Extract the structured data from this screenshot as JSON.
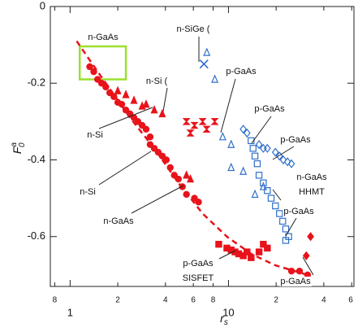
{
  "chart_data": {
    "type": "scatter",
    "x_label": {
      "base": "r",
      "sub": "s"
    },
    "y_label": {
      "base": "F",
      "sub": "0",
      "sup": "a"
    },
    "xscale": "log",
    "xlim": [
      0.75,
      62
    ],
    "ylim": [
      0,
      -0.73
    ],
    "xticks": [
      {
        "value": 0.8,
        "label": "8"
      },
      1,
      2,
      4,
      6,
      8,
      10,
      {
        "value": 20,
        "label": "2"
      },
      {
        "value": 40,
        "label": "4"
      },
      {
        "value": 60,
        "label": "6"
      }
    ],
    "major_xticks": [
      1,
      10
    ],
    "yticks": [
      0,
      -0.2,
      -0.4,
      -0.6
    ],
    "series": [
      {
        "color": "#e8131b",
        "marker": "circle",
        "filled": true,
        "x": [
          1.33,
          1.41,
          1.49,
          1.58,
          1.68,
          1.78,
          1.89,
          2.0,
          2.12,
          2.25,
          2.39,
          2.53,
          2.68,
          2.85,
          3.02,
          3.2,
          3.2,
          3.4,
          3.6,
          3.82,
          4.05,
          4.29,
          4.55,
          4.83,
          5.12,
          5.43,
          6.1,
          6.47,
          25,
          28.1,
          31.6
        ],
        "y": [
          -0.157,
          -0.17,
          -0.19,
          -0.2,
          -0.21,
          -0.225,
          -0.235,
          -0.25,
          -0.255,
          -0.27,
          -0.28,
          -0.29,
          -0.3,
          -0.31,
          -0.32,
          -0.34,
          -0.36,
          -0.37,
          -0.38,
          -0.39,
          -0.4,
          -0.42,
          -0.44,
          -0.45,
          -0.47,
          -0.49,
          -0.5,
          -0.51,
          -0.69,
          -0.69,
          -0.7
        ]
      },
      {
        "color": "#e8131b",
        "marker": "triangle",
        "filled": true,
        "x": [
          2.0,
          2.25,
          2.53,
          2.85,
          3.02,
          3.4,
          3.82,
          5.43,
          5.75
        ],
        "y": [
          -0.22,
          -0.23,
          -0.245,
          -0.26,
          -0.255,
          -0.27,
          -0.28,
          -0.44,
          -0.45
        ]
      },
      {
        "color": "#e8131b",
        "marker": "hourglass",
        "filled": true,
        "x": [
          5.43,
          6.1,
          6.87,
          7.28,
          8.19,
          5.75
        ],
        "y": [
          -0.3,
          -0.31,
          -0.3,
          -0.32,
          -0.3,
          -0.33
        ]
      },
      {
        "color": "#e8131b",
        "marker": "square",
        "filled": true,
        "x": [
          8.68,
          9.77,
          10.4,
          11.0,
          11.6,
          12.4,
          13.1,
          13.9,
          15.6,
          16.6,
          17.6
        ],
        "y": [
          -0.62,
          -0.63,
          -0.635,
          -0.64,
          -0.645,
          -0.65,
          -0.64,
          -0.655,
          -0.64,
          -0.62,
          -0.63
        ]
      },
      {
        "color": "#e8131b",
        "marker": "diamond",
        "filled": true,
        "x": [
          33,
          31
        ],
        "y": [
          -0.6,
          -0.65
        ]
      },
      {
        "color": "#2f6fc9",
        "marker": "diamond",
        "filled": false,
        "x": [
          12.4,
          13.1,
          15.6,
          16.6,
          17.6,
          19.8,
          21,
          22.2,
          23.6,
          25
        ],
        "y": [
          -0.32,
          -0.33,
          -0.36,
          -0.37,
          -0.37,
          -0.38,
          -0.39,
          -0.4,
          -0.405,
          -0.41
        ]
      },
      {
        "color": "#2f6fc9",
        "marker": "square",
        "filled": false,
        "x": [
          13.9,
          14.3,
          14.7,
          15.2,
          15.6,
          16.6,
          17.6,
          18.6,
          19.8,
          21,
          22,
          23,
          24,
          23
        ],
        "y": [
          -0.35,
          -0.37,
          -0.39,
          -0.41,
          -0.44,
          -0.46,
          -0.48,
          -0.5,
          -0.52,
          -0.54,
          -0.56,
          -0.58,
          -0.6,
          -0.61
        ]
      },
      {
        "color": "#2f6fc9",
        "marker": "triangle",
        "filled": false,
        "x": [
          7.3,
          8.2,
          9.2,
          10.4,
          12.4,
          14.7,
          16.6,
          10.4
        ],
        "y": [
          -0.12,
          -0.19,
          -0.34,
          -0.42,
          -0.43,
          -0.49,
          -0.47,
          -0.36
        ]
      },
      {
        "color": "#2f6fc9",
        "marker": "cross",
        "filled": false,
        "x": [
          7.0
        ],
        "y": [
          -0.15
        ]
      }
    ],
    "curve": {
      "color": "#e8131b",
      "dashed": true,
      "x": [
        1.1,
        1.33,
        1.68,
        2.39,
        3.4,
        4.83,
        6.87,
        9.77,
        13.9,
        19.8,
        31.6
      ],
      "y": [
        -0.09,
        -0.14,
        -0.2,
        -0.29,
        -0.37,
        -0.46,
        -0.54,
        -0.6,
        -0.645,
        -0.675,
        -0.7
      ]
    },
    "highlight": {
      "color": "#9be02e",
      "xlim": [
        1.15,
        2.25
      ],
      "ylim": [
        -0.104,
        -0.19
      ]
    },
    "annotations": [
      {
        "lines": [
          "n-GaAs"
        ]
      },
      {
        "lines": [
          "n-SiGe ("
        ]
      },
      {
        "lines": [
          "n-Si ("
        ]
      },
      {
        "lines": [
          "p-GaAs"
        ]
      },
      {
        "lines": [
          "p-GaAs"
        ]
      },
      {
        "lines": [
          "p-GaAs"
        ]
      },
      {
        "lines": [
          "n-Si"
        ]
      },
      {
        "lines": [
          "n-Si"
        ]
      },
      {
        "lines": [
          "n-GaAs",
          "HHMT"
        ]
      },
      {
        "lines": [
          "n-GaAs"
        ]
      },
      {
        "lines": [
          "p-GaAs"
        ]
      },
      {
        "lines": [
          "p-GaAs",
          "SISFET"
        ]
      },
      {
        "lines": [
          "p-GaAs"
        ]
      }
    ]
  }
}
